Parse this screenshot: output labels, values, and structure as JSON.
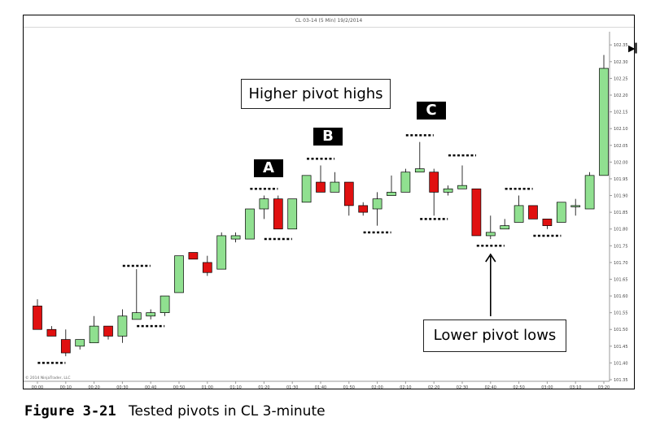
{
  "window_title": "CL 03-14 (5 Min)  19/2/2014",
  "copyright": "© 2014 NinjaTrader, LLC",
  "caption": {
    "number": "Figure 3-21",
    "text": "Tested pivots in CL 3-minute"
  },
  "annotations": {
    "higher_pivot_highs": "Higher pivot highs",
    "lower_pivot_lows": "Lower pivot lows",
    "label_a": "A",
    "label_b": "B",
    "label_c": "C"
  },
  "colors": {
    "up": "#90e090",
    "down": "#e01010",
    "outline": "#000000",
    "marker": "#000000"
  },
  "icons": {
    "play": "play-end-icon"
  },
  "chart_data": {
    "type": "candlestick",
    "title": "CL 03-14 (5 Min)  19/2/2014",
    "ylim": [
      101.35,
      102.37
    ],
    "y_ticks": [
      "102.35",
      "102.30",
      "102.25",
      "102.20",
      "102.15",
      "102.10",
      "102.05",
      "102.00",
      "101.95",
      "101.90",
      "101.85",
      "101.80",
      "101.75",
      "101.70",
      "101.65",
      "101.60",
      "101.55",
      "101.50",
      "101.45",
      "101.40",
      "101.35"
    ],
    "x_ticks": [
      "00:00",
      "00:10",
      "00:20",
      "00:30",
      "00:40",
      "00:50",
      "01:00",
      "01:10",
      "01:20",
      "01:30",
      "01:40",
      "01:50",
      "02:00",
      "02:10",
      "02:20",
      "02:30",
      "02:40",
      "02:50",
      "03:00",
      "03:10",
      "03:20"
    ],
    "candles": [
      {
        "open": 101.57,
        "high": 101.59,
        "low": 101.5,
        "close": 101.5
      },
      {
        "open": 101.5,
        "high": 101.51,
        "low": 101.48,
        "close": 101.48
      },
      {
        "open": 101.47,
        "high": 101.5,
        "low": 101.42,
        "close": 101.43
      },
      {
        "open": 101.45,
        "high": 101.47,
        "low": 101.44,
        "close": 101.47
      },
      {
        "open": 101.46,
        "high": 101.54,
        "low": 101.46,
        "close": 101.51
      },
      {
        "open": 101.51,
        "high": 101.51,
        "low": 101.47,
        "close": 101.48
      },
      {
        "open": 101.48,
        "high": 101.56,
        "low": 101.46,
        "close": 101.54
      },
      {
        "open": 101.53,
        "high": 101.68,
        "low": 101.53,
        "close": 101.55
      },
      {
        "open": 101.54,
        "high": 101.56,
        "low": 101.53,
        "close": 101.55
      },
      {
        "open": 101.55,
        "high": 101.6,
        "low": 101.54,
        "close": 101.6
      },
      {
        "open": 101.61,
        "high": 101.72,
        "low": 101.61,
        "close": 101.72
      },
      {
        "open": 101.73,
        "high": 101.73,
        "low": 101.71,
        "close": 101.71
      },
      {
        "open": 101.7,
        "high": 101.72,
        "low": 101.66,
        "close": 101.67
      },
      {
        "open": 101.68,
        "high": 101.79,
        "low": 101.68,
        "close": 101.78
      },
      {
        "open": 101.77,
        "high": 101.79,
        "low": 101.76,
        "close": 101.78
      },
      {
        "open": 101.77,
        "high": 101.86,
        "low": 101.77,
        "close": 101.86
      },
      {
        "open": 101.86,
        "high": 101.9,
        "low": 101.83,
        "close": 101.89
      },
      {
        "open": 101.89,
        "high": 101.9,
        "low": 101.8,
        "close": 101.8
      },
      {
        "open": 101.8,
        "high": 101.89,
        "low": 101.8,
        "close": 101.89
      },
      {
        "open": 101.88,
        "high": 101.96,
        "low": 101.88,
        "close": 101.96
      },
      {
        "open": 101.94,
        "high": 101.99,
        "low": 101.91,
        "close": 101.91
      },
      {
        "open": 101.91,
        "high": 101.97,
        "low": 101.91,
        "close": 101.94
      },
      {
        "open": 101.94,
        "high": 101.94,
        "low": 101.84,
        "close": 101.87
      },
      {
        "open": 101.87,
        "high": 101.88,
        "low": 101.84,
        "close": 101.85
      },
      {
        "open": 101.86,
        "high": 101.91,
        "low": 101.81,
        "close": 101.89
      },
      {
        "open": 101.9,
        "high": 101.96,
        "low": 101.9,
        "close": 101.91
      },
      {
        "open": 101.91,
        "high": 101.98,
        "low": 101.91,
        "close": 101.97
      },
      {
        "open": 101.97,
        "high": 102.06,
        "low": 101.97,
        "close": 101.98
      },
      {
        "open": 101.97,
        "high": 101.98,
        "low": 101.84,
        "close": 101.91
      },
      {
        "open": 101.91,
        "high": 101.93,
        "low": 101.9,
        "close": 101.92
      },
      {
        "open": 101.92,
        "high": 101.99,
        "low": 101.92,
        "close": 101.93
      },
      {
        "open": 101.92,
        "high": 101.92,
        "low": 101.78,
        "close": 101.78
      },
      {
        "open": 101.78,
        "high": 101.84,
        "low": 101.77,
        "close": 101.79
      },
      {
        "open": 101.8,
        "high": 101.83,
        "low": 101.8,
        "close": 101.81
      },
      {
        "open": 101.82,
        "high": 101.9,
        "low": 101.82,
        "close": 101.87
      },
      {
        "open": 101.87,
        "high": 101.87,
        "low": 101.83,
        "close": 101.83
      },
      {
        "open": 101.83,
        "high": 101.83,
        "low": 101.8,
        "close": 101.81
      },
      {
        "open": 101.82,
        "high": 101.88,
        "low": 101.82,
        "close": 101.88
      },
      {
        "open": 101.87,
        "high": 101.89,
        "low": 101.84,
        "close": 101.87
      },
      {
        "open": 101.86,
        "high": 101.97,
        "low": 101.86,
        "close": 101.96
      },
      {
        "open": 101.96,
        "high": 102.32,
        "low": 101.96,
        "close": 102.28
      }
    ],
    "pivot_markers": [
      {
        "index": 1,
        "kind": "low",
        "level": 101.4
      },
      {
        "index": 7,
        "kind": "high",
        "level": 101.69
      },
      {
        "index": 8,
        "kind": "low",
        "level": 101.51
      },
      {
        "index": 16,
        "kind": "high",
        "level": 101.92
      },
      {
        "index": 17,
        "kind": "low",
        "level": 101.77
      },
      {
        "index": 20,
        "kind": "high",
        "level": 102.01
      },
      {
        "index": 24,
        "kind": "low",
        "level": 101.79
      },
      {
        "index": 27,
        "kind": "high",
        "level": 102.08
      },
      {
        "index": 28,
        "kind": "low",
        "level": 101.83
      },
      {
        "index": 30,
        "kind": "high",
        "level": 102.02
      },
      {
        "index": 32,
        "kind": "low",
        "level": 101.75
      },
      {
        "index": 34,
        "kind": "high",
        "level": 101.92
      },
      {
        "index": 36,
        "kind": "low",
        "level": 101.78
      }
    ]
  }
}
